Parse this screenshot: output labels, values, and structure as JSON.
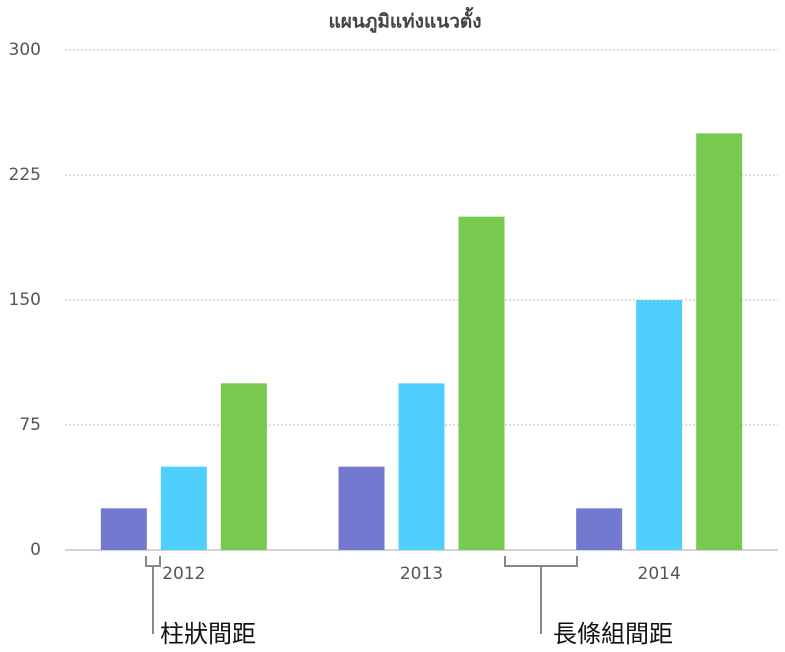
{
  "chart_data": {
    "type": "bar",
    "title": "แผนภูมิแท่งแนวตั้ง",
    "categories": [
      "2012",
      "2013",
      "2014"
    ],
    "series": [
      {
        "color": "#7279cf",
        "values": [
          25,
          50,
          25
        ]
      },
      {
        "color": "#4fcffc",
        "values": [
          50,
          100,
          150
        ]
      },
      {
        "color": "#77c94f",
        "values": [
          100,
          200,
          250
        ]
      }
    ],
    "ylim": [
      0,
      300
    ],
    "yticks": [
      0,
      75,
      150,
      225,
      300
    ],
    "grid": true,
    "annotations": [
      "柱狀間距",
      "長條組間距"
    ]
  }
}
